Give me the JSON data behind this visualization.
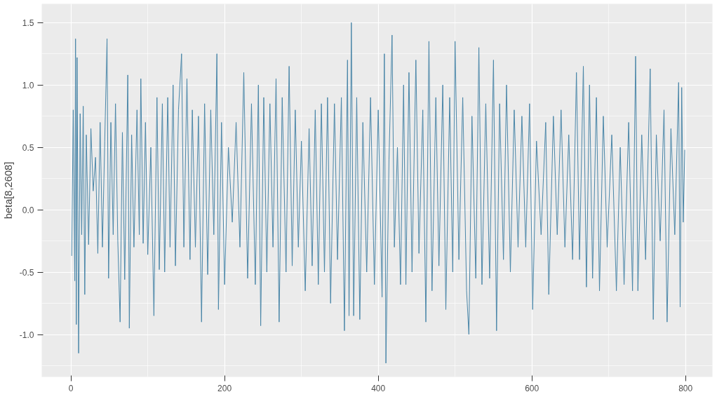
{
  "chart_data": {
    "type": "line",
    "ylabel": "beta[8,2608]",
    "x": [
      1,
      3,
      5,
      6,
      7,
      8,
      10,
      12,
      14,
      16,
      18,
      20,
      23,
      26,
      29,
      32,
      35,
      38,
      41,
      44,
      47,
      49,
      52,
      55,
      58,
      61,
      64,
      67,
      70,
      74,
      76,
      79,
      82,
      86,
      89,
      91,
      94,
      97,
      100,
      104,
      108,
      112,
      115,
      119,
      122,
      126,
      129,
      133,
      136,
      140,
      144,
      147,
      151,
      155,
      158,
      162,
      166,
      170,
      174,
      178,
      182,
      186,
      190,
      192,
      196,
      200,
      205,
      210,
      215,
      220,
      225,
      230,
      235,
      240,
      244,
      247,
      251,
      255,
      259,
      263,
      267,
      271,
      275,
      280,
      284,
      288,
      292,
      296,
      300,
      305,
      310,
      314,
      318,
      322,
      326,
      330,
      334,
      338,
      343,
      347,
      352,
      356,
      360,
      362,
      365,
      368,
      372,
      376,
      380,
      385,
      390,
      395,
      400,
      405,
      408,
      410,
      414,
      418,
      421,
      425,
      429,
      433,
      436,
      440,
      444,
      449,
      453,
      458,
      462,
      466,
      470,
      475,
      479,
      484,
      488,
      493,
      497,
      500,
      505,
      510,
      515,
      518,
      522,
      527,
      531,
      535,
      540,
      545,
      550,
      554,
      558,
      563,
      567,
      572,
      577,
      582,
      587,
      592,
      597,
      601,
      606,
      612,
      618,
      622,
      628,
      633,
      638,
      643,
      648,
      653,
      658,
      662,
      667,
      671,
      675,
      679,
      684,
      688,
      693,
      698,
      704,
      710,
      715,
      720,
      726,
      731,
      735,
      738,
      743,
      748,
      754,
      758,
      762,
      767,
      772,
      776,
      781,
      786,
      791,
      793,
      795,
      797,
      799
    ],
    "series": [
      {
        "color": "#4a86a8",
        "values": [
          -0.37,
          0.8,
          -0.57,
          1.37,
          -0.92,
          1.22,
          -1.15,
          0.77,
          -0.2,
          0.83,
          -0.68,
          0.6,
          -0.28,
          0.65,
          0.15,
          0.42,
          -0.35,
          0.7,
          -0.3,
          0.55,
          1.37,
          -0.55,
          0.7,
          -0.2,
          0.85,
          -0.25,
          -0.9,
          0.62,
          -0.56,
          1.08,
          -0.95,
          0.6,
          -0.3,
          0.8,
          -0.2,
          1.05,
          -0.27,
          0.7,
          -0.36,
          0.5,
          -0.85,
          0.9,
          -0.48,
          0.85,
          -0.5,
          0.9,
          -0.3,
          1.0,
          -0.45,
          0.8,
          1.25,
          -0.3,
          1.05,
          -0.4,
          0.8,
          -0.3,
          0.75,
          -0.9,
          0.85,
          -0.52,
          0.8,
          -0.2,
          1.25,
          -0.8,
          0.7,
          -0.6,
          0.5,
          -0.1,
          0.7,
          -0.3,
          1.1,
          -0.55,
          0.85,
          -0.6,
          1.0,
          -0.93,
          0.9,
          -0.5,
          0.85,
          -0.3,
          1.05,
          -0.9,
          0.9,
          -0.5,
          1.15,
          -0.45,
          0.8,
          -0.3,
          0.55,
          -0.65,
          0.65,
          -0.45,
          0.8,
          -0.6,
          0.85,
          -0.5,
          0.9,
          -0.75,
          0.85,
          -0.4,
          0.9,
          -0.97,
          1.2,
          -0.85,
          1.5,
          -0.85,
          0.9,
          -0.88,
          0.7,
          -0.5,
          0.9,
          -0.6,
          0.8,
          -0.7,
          1.25,
          -1.23,
          0.4,
          1.4,
          -0.3,
          0.5,
          -0.6,
          1.0,
          -0.6,
          1.1,
          -0.5,
          1.2,
          -0.35,
          0.8,
          -0.9,
          1.35,
          -0.65,
          0.9,
          -0.45,
          1.0,
          -0.8,
          0.9,
          -0.5,
          1.35,
          -0.4,
          0.9,
          -0.65,
          -1.0,
          0.75,
          -0.55,
          1.3,
          -0.6,
          0.85,
          -0.55,
          1.2,
          -0.97,
          0.85,
          -0.4,
          1.0,
          -0.5,
          0.8,
          -0.3,
          0.75,
          -0.3,
          0.85,
          -0.8,
          0.55,
          -0.2,
          0.7,
          -0.68,
          0.75,
          -0.2,
          0.8,
          -0.3,
          0.6,
          -0.4,
          1.1,
          -0.4,
          1.15,
          -0.62,
          1.0,
          -0.55,
          0.9,
          -0.65,
          0.75,
          -0.3,
          0.6,
          -0.65,
          0.5,
          -0.6,
          0.7,
          -0.65,
          1.23,
          -0.65,
          0.6,
          -0.4,
          1.13,
          -0.88,
          0.6,
          -0.25,
          0.8,
          -0.9,
          0.65,
          -0.2,
          1.02,
          -0.78,
          0.98,
          -0.1,
          0.48
        ]
      }
    ],
    "xlim": [
      -38,
      835
    ],
    "ylim": [
      -1.34,
      1.65
    ],
    "xticks": [
      0,
      200,
      400,
      600,
      800
    ],
    "yticks": [
      {
        "value": -1.0,
        "label": "-1.0"
      },
      {
        "value": -0.5,
        "label": "-0.5"
      },
      {
        "value": 0.0,
        "label": "0.0"
      },
      {
        "value": 0.5,
        "label": "0.5"
      },
      {
        "value": 1.0,
        "label": "1.0"
      },
      {
        "value": 1.5,
        "label": "1.5"
      }
    ],
    "grid": true,
    "line_style": "solid"
  }
}
